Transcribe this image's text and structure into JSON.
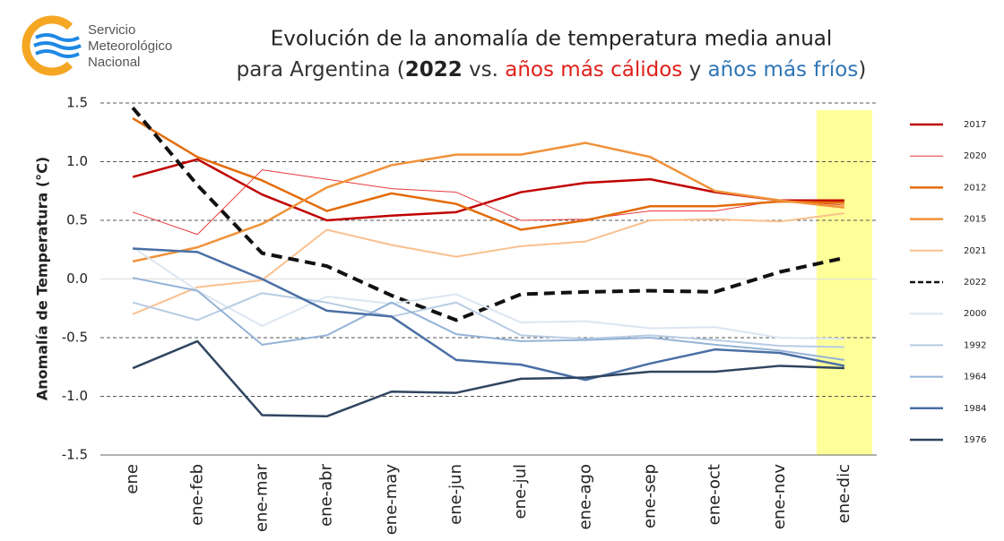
{
  "logo": [
    "Servicio",
    "Meteorológico",
    "Nacional"
  ],
  "chart_data": {
    "type": "line",
    "title": "Evolución de la anomalía de temperatura media anual",
    "subtitle": [
      {
        "text": "para Argentina (",
        "color": "#333333",
        "bold": false
      },
      {
        "text": "2022",
        "color": "#222222",
        "bold": true
      },
      {
        "text": " vs. ",
        "color": "#333333",
        "bold": false
      },
      {
        "text": "años más cálidos",
        "color": "#e0201b",
        "bold": false
      },
      {
        "text": " y ",
        "color": "#333333",
        "bold": false
      },
      {
        "text": "años más fríos",
        "color": "#2e75b6",
        "bold": false
      },
      {
        "text": ")",
        "color": "#333333",
        "bold": false
      }
    ],
    "ylabel": "Anomalía de Temperatura (°C)",
    "categories": [
      "ene",
      "ene-feb",
      "ene-mar",
      "ene-abr",
      "ene-may",
      "ene-jun",
      "ene-jul",
      "ene-ago",
      "ene-sep",
      "ene-oct",
      "ene-nov",
      "ene-dic"
    ],
    "highlight_index": 11,
    "highlight_color": "#ffff99",
    "ylim": [
      -1.5,
      1.5
    ],
    "yticks": [
      1.5,
      {
        "value": 1.0,
        "label": "1.0"
      },
      0.5,
      {
        "value": 0.0,
        "label": "0.0"
      },
      -0.5,
      {
        "value": -1.0,
        "label": "-1.0"
      },
      -1.5
    ],
    "grid": true,
    "legend": "right",
    "series": [
      {
        "name": "2017",
        "color": "#c00000",
        "width": 2.5,
        "dashed": false,
        "values": [
          0.87,
          1.02,
          0.72,
          0.5,
          0.54,
          0.57,
          0.74,
          0.82,
          0.85,
          0.74,
          0.67,
          0.67
        ]
      },
      {
        "name": "2020",
        "color": "#e8393c",
        "width": 1,
        "dashed": false,
        "values": [
          0.57,
          0.38,
          0.93,
          0.85,
          0.77,
          0.74,
          0.5,
          0.51,
          0.58,
          0.58,
          0.67,
          0.63
        ]
      },
      {
        "name": "2012",
        "color": "#e36c0a",
        "width": 2.5,
        "dashed": false,
        "values": [
          1.37,
          1.04,
          0.84,
          0.58,
          0.73,
          0.64,
          0.42,
          0.5,
          0.62,
          0.62,
          0.66,
          0.65
        ]
      },
      {
        "name": "2015",
        "color": "#f0923a",
        "width": 2.5,
        "dashed": false,
        "values": [
          0.15,
          0.27,
          0.47,
          0.78,
          0.97,
          1.06,
          1.06,
          1.16,
          1.04,
          0.75,
          0.67,
          0.61
        ]
      },
      {
        "name": "2021",
        "color": "#f9c08f",
        "width": 2,
        "dashed": false,
        "values": [
          -0.3,
          -0.07,
          -0.01,
          0.42,
          0.29,
          0.19,
          0.28,
          0.32,
          0.5,
          0.51,
          0.49,
          0.56
        ]
      },
      {
        "name": "2022",
        "color": "#111111",
        "width": 4,
        "dashed": true,
        "values": [
          1.46,
          0.8,
          0.22,
          0.11,
          -0.14,
          -0.35,
          -0.13,
          -0.11,
          -0.1,
          -0.11,
          0.06,
          0.18
        ]
      },
      {
        "name": "2000",
        "color": "#dce6f2",
        "width": 2,
        "dashed": false,
        "values": [
          0.27,
          -0.1,
          -0.4,
          -0.15,
          -0.21,
          -0.13,
          -0.37,
          -0.36,
          -0.42,
          -0.41,
          -0.5,
          -0.51
        ]
      },
      {
        "name": "1992",
        "color": "#b8cce4",
        "width": 2,
        "dashed": false,
        "values": [
          -0.2,
          -0.35,
          -0.12,
          -0.2,
          -0.32,
          -0.2,
          -0.48,
          -0.51,
          -0.48,
          -0.52,
          -0.57,
          -0.58
        ]
      },
      {
        "name": "1964",
        "color": "#95b3d7",
        "width": 2,
        "dashed": false,
        "values": [
          0.01,
          -0.1,
          -0.56,
          -0.48,
          -0.2,
          -0.47,
          -0.53,
          -0.52,
          -0.5,
          -0.56,
          -0.61,
          -0.69
        ]
      },
      {
        "name": "1984",
        "color": "#4a6fa5",
        "width": 2.5,
        "dashed": false,
        "values": [
          0.26,
          0.23,
          0.0,
          -0.27,
          -0.32,
          -0.69,
          -0.73,
          -0.86,
          -0.72,
          -0.6,
          -0.63,
          -0.74
        ]
      },
      {
        "name": "1976",
        "color": "#2f4560",
        "width": 2.5,
        "dashed": false,
        "values": [
          -0.76,
          -0.53,
          -1.16,
          -1.17,
          -0.96,
          -0.97,
          -0.85,
          -0.84,
          -0.79,
          -0.79,
          -0.74,
          -0.76
        ]
      }
    ]
  }
}
